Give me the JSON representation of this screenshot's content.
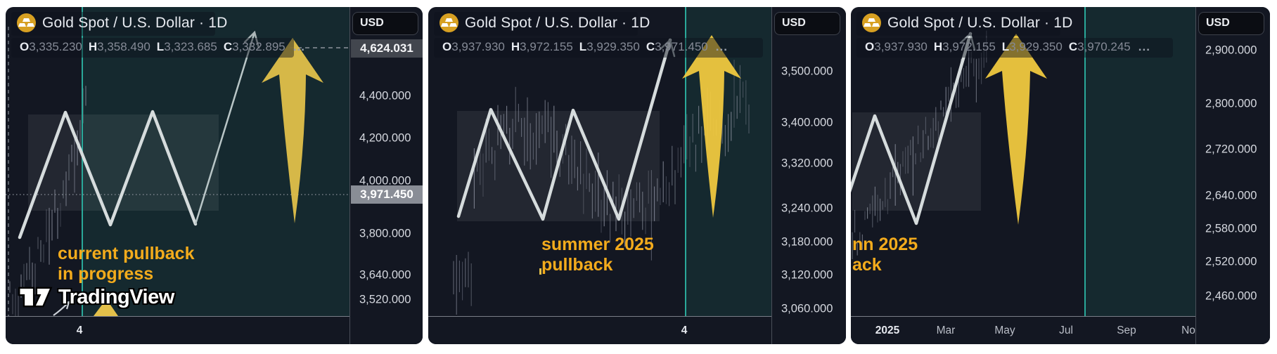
{
  "app": {
    "watermark_text": "TradingView"
  },
  "colors": {
    "panel_bg": "#131722",
    "accent_teal": "#2aa99a",
    "arrow_yellow": "#efc83f",
    "annotation_amber": "#f3ab1c",
    "marker_label_bg": "#42464e",
    "last_price_label_bg": "#898d96"
  },
  "panels": [
    {
      "title": "Gold Spot / U.S. Dollar · 1D",
      "icon": "gold-bars-icon",
      "ohlc": {
        "open_label": "O",
        "open": "3,335.230",
        "high_label": "H",
        "high": "3,358.490",
        "low_label": "L",
        "low": "3,323.685",
        "close_label": "C",
        "close": "3,332.895",
        "more": "..."
      },
      "scale": {
        "currency": "USD",
        "marker_price": "4,624.031",
        "last_price": "3,971.450",
        "ticks": [
          "4,400.000",
          "4,200.000",
          "4,000.000",
          "3,800.000",
          "3,640.000",
          "3,520.000"
        ]
      },
      "annotation": {
        "line1": "current pullback",
        "line2": "in progress"
      },
      "time_labels": [
        "4"
      ]
    },
    {
      "title": "Gold Spot / U.S. Dollar · 1D",
      "icon": "gold-bars-icon",
      "ohlc": {
        "open_label": "O",
        "open": "3,937.930",
        "high_label": "H",
        "high": "3,972.155",
        "low_label": "L",
        "low": "3,929.350",
        "close_label": "C",
        "close": "3,971.450",
        "more": "..."
      },
      "scale": {
        "currency": "USD",
        "ticks": [
          "3,500.000",
          "3,400.000",
          "3,320.000",
          "3,240.000",
          "3,180.000",
          "3,120.000",
          "3,060.000"
        ]
      },
      "annotation": {
        "line1": "summer 2025",
        "line2": "pullback"
      },
      "time_labels": [
        "4"
      ]
    },
    {
      "title": "Gold Spot / U.S. Dollar · 1D",
      "icon": "gold-bars-icon",
      "ohlc": {
        "open_label": "O",
        "open": "3,937.930",
        "high_label": "H",
        "high": "3,972.155",
        "low_label": "L",
        "low": "3,929.350",
        "close_label": "C",
        "close": "3,970.245",
        "more": "..."
      },
      "scale": {
        "currency": "USD",
        "ticks": [
          "2,900.000",
          "2,800.000",
          "2,720.000",
          "2,640.000",
          "2,580.000",
          "2,520.000",
          "2,460.000"
        ]
      },
      "annotation": {
        "line1": "nn 2025",
        "line2": "ack"
      },
      "time_labels": [
        "2025",
        "Mar",
        "May",
        "Jul",
        "Sep",
        "No"
      ]
    }
  ]
}
